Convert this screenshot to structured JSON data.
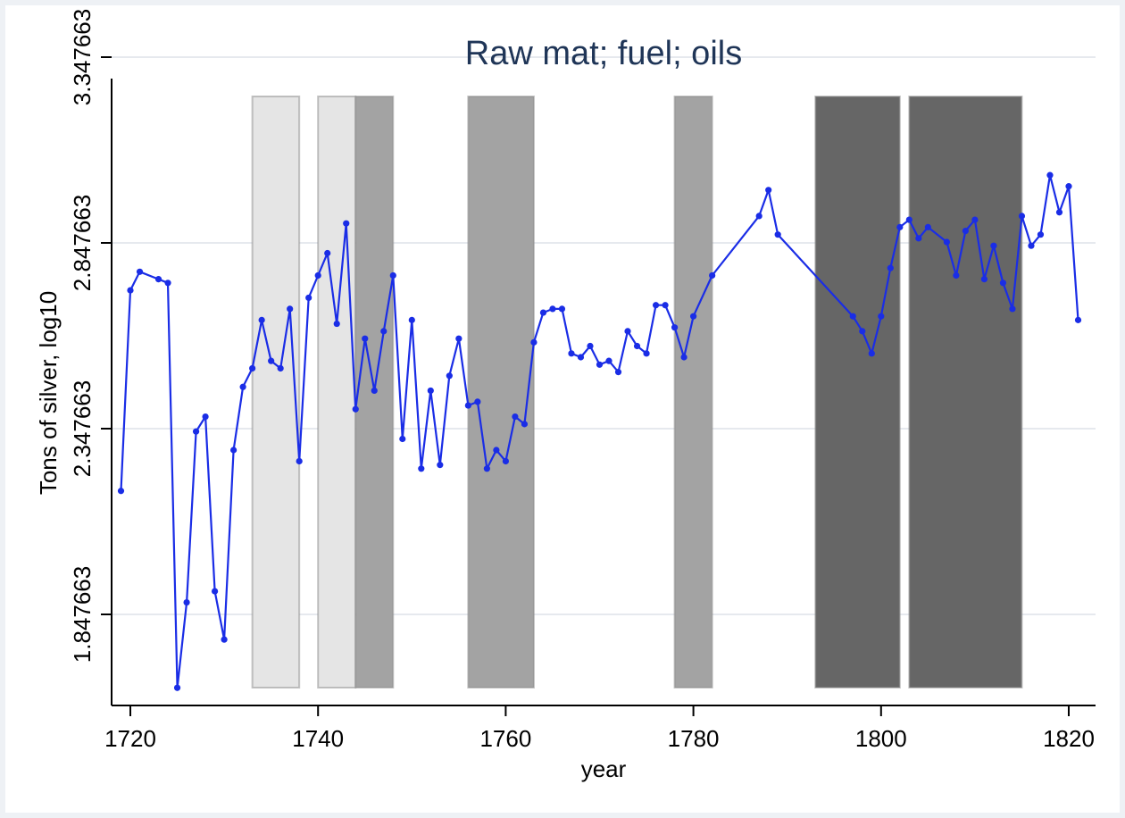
{
  "chart_data": {
    "type": "line",
    "title": "Raw mat; fuel; oils",
    "xlabel": "year",
    "ylabel": "Tons of silver, log10",
    "xlim": [
      1717,
      1823
    ],
    "ylim": [
      1.647663,
      3.347663
    ],
    "xticks": [
      1720,
      1740,
      1760,
      1780,
      1800,
      1820
    ],
    "xtick_labels": [
      "1720",
      "1740",
      "1760",
      "1780",
      "1800",
      "1820"
    ],
    "yticks": [
      1.847663,
      2.347663,
      2.847663,
      3.347663
    ],
    "ytick_labels": [
      "1.847663",
      "2.347663",
      "2.847663",
      "3.347663"
    ],
    "grid": true,
    "line_color": "#1a2de6",
    "shaded_periods": [
      {
        "start": 1733,
        "end": 1738,
        "color": "#e5e5e5"
      },
      {
        "start": 1740,
        "end": 1744,
        "color": "#e5e5e5"
      },
      {
        "start": 1744,
        "end": 1748,
        "color": "#a3a3a3"
      },
      {
        "start": 1756,
        "end": 1763,
        "color": "#a3a3a3"
      },
      {
        "start": 1778,
        "end": 1782,
        "color": "#a3a3a3"
      },
      {
        "start": 1793,
        "end": 1802,
        "color": "#666666"
      },
      {
        "start": 1803,
        "end": 1815,
        "color": "#666666"
      }
    ],
    "series": [
      {
        "x": [
          1719,
          1720,
          1721,
          1723,
          1724,
          1725,
          1726,
          1727,
          1728,
          1729,
          1730,
          1731,
          1732,
          1733,
          1734,
          1735,
          1736,
          1737,
          1738,
          1739,
          1740,
          1741,
          1742,
          1743,
          1744,
          1745,
          1746,
          1747,
          1748,
          1749,
          1750,
          1751,
          1752,
          1753,
          1754,
          1755,
          1756,
          1757,
          1758,
          1759,
          1760,
          1761,
          1762,
          1763,
          1764,
          1765,
          1766,
          1767,
          1768,
          1769,
          1770,
          1771,
          1772,
          1773,
          1774,
          1775,
          1776,
          1777,
          1778,
          1779,
          1780,
          1782,
          1787,
          1788,
          1789,
          1797,
          1798,
          1799,
          1800,
          1801,
          1802,
          1803,
          1804,
          1805,
          1807,
          1808,
          1809,
          1810,
          1811,
          1812,
          1813,
          1814,
          1815,
          1816,
          1817,
          1818,
          1819,
          1820,
          1821
        ],
        "y": [
          2.18,
          2.72,
          2.77,
          2.75,
          2.74,
          1.65,
          1.88,
          2.34,
          2.38,
          1.91,
          1.78,
          2.29,
          2.46,
          2.51,
          2.64,
          2.53,
          2.51,
          2.67,
          2.26,
          2.7,
          2.76,
          2.82,
          2.63,
          2.9,
          2.4,
          2.59,
          2.45,
          2.61,
          2.76,
          2.32,
          2.64,
          2.24,
          2.45,
          2.25,
          2.49,
          2.59,
          2.41,
          2.42,
          2.24,
          2.29,
          2.26,
          2.38,
          2.36,
          2.58,
          2.66,
          2.67,
          2.67,
          2.55,
          2.54,
          2.57,
          2.52,
          2.53,
          2.5,
          2.61,
          2.57,
          2.55,
          2.68,
          2.68,
          2.62,
          2.54,
          2.65,
          2.76,
          2.92,
          2.99,
          2.87,
          2.65,
          2.61,
          2.55,
          2.65,
          2.78,
          2.89,
          2.91,
          2.86,
          2.89,
          2.85,
          2.76,
          2.88,
          2.91,
          2.75,
          2.84,
          2.74,
          2.67,
          2.92,
          2.84,
          2.87,
          3.03,
          2.93,
          3.0,
          2.64
        ]
      }
    ]
  }
}
